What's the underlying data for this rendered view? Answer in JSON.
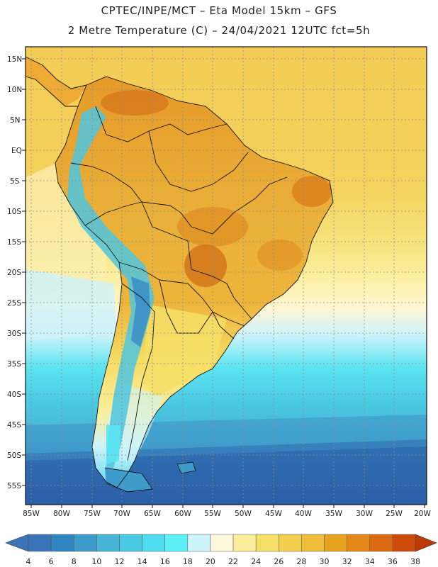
{
  "header": {
    "line1": "CPTEC/INPE/MCT –  Eta Model 15km – GFS",
    "line2": "2 Metre Temperature (C) – 24/04/2021 12UTC fct=5h"
  },
  "map": {
    "lat_labels": [
      "15N",
      "10N",
      "5N",
      "EQ",
      "5S",
      "10S",
      "15S",
      "20S",
      "25S",
      "30S",
      "35S",
      "40S",
      "45S",
      "50S",
      "55S"
    ],
    "lon_labels": [
      "85W",
      "80W",
      "75W",
      "70W",
      "65W",
      "60W",
      "55W",
      "50W",
      "45W",
      "40W",
      "35W",
      "30W",
      "25W",
      "20W"
    ]
  },
  "colorbar": {
    "ticks": [
      "4",
      "6",
      "8",
      "10",
      "12",
      "14",
      "16",
      "18",
      "20",
      "22",
      "24",
      "26",
      "28",
      "30",
      "32",
      "34",
      "36",
      "38"
    ],
    "colors": [
      "#3a74b6",
      "#2f86c0",
      "#3d9ccb",
      "#48b4d6",
      "#4ac9e2",
      "#50dcef",
      "#5cf0f6",
      "#cdf3fb",
      "#fff8dc",
      "#fbee9a",
      "#f6df67",
      "#f2cf4e",
      "#eebd3a",
      "#e9a21e",
      "#e48818",
      "#dc6a12",
      "#cc4a0a"
    ],
    "left_arrow_color": "#3a74b6",
    "right_arrow_color": "#bb3a06"
  }
}
